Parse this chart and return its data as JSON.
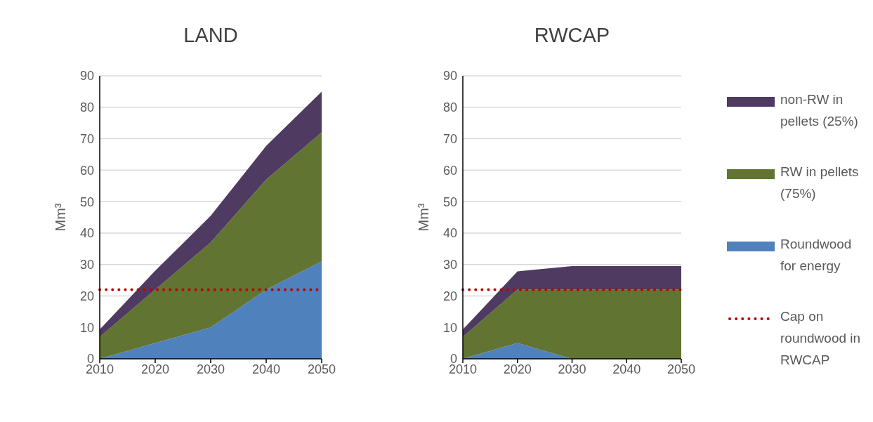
{
  "chart_data": [
    {
      "type": "area",
      "title": "LAND",
      "ylabel": "Mm³",
      "x": [
        2010,
        2020,
        2030,
        2040,
        2050
      ],
      "stacked": true,
      "series": [
        {
          "color": "#4f81bd",
          "values": [
            0,
            5,
            10,
            22,
            31
          ]
        },
        {
          "color": "#627431",
          "values": [
            7,
            17,
            27,
            35,
            41
          ]
        },
        {
          "color": "#4f3b62",
          "values": [
            2.3,
            6,
            8.5,
            10.7,
            13
          ]
        }
      ],
      "xlim": [
        2010,
        2050
      ],
      "xticks": [
        2010,
        2020,
        2030,
        2040,
        2050
      ],
      "ylim": [
        0,
        90
      ],
      "yticks": [
        0,
        10,
        20,
        30,
        40,
        50,
        60,
        70,
        80,
        90
      ],
      "grid": "y",
      "legend": false,
      "ref_lines": [
        {
          "axis": "y",
          "value": 22,
          "color": "#c00000",
          "line_style": "dotted"
        }
      ]
    },
    {
      "type": "area",
      "title": "RWCAP",
      "ylabel": "Mm³",
      "x": [
        2010,
        2020,
        2030,
        2040,
        2050
      ],
      "stacked": true,
      "series": [
        {
          "name": "Roundwood for energy",
          "color": "#4f81bd",
          "values": [
            0,
            5,
            0,
            0,
            0
          ]
        },
        {
          "name": "RW in pellets (75%)",
          "color": "#627431",
          "values": [
            7,
            17,
            22,
            22,
            22
          ]
        },
        {
          "name": "non-RW in pellets (25%)",
          "color": "#4f3b62",
          "values": [
            2.3,
            5.8,
            7.5,
            7.5,
            7.5
          ]
        }
      ],
      "xlim": [
        2010,
        2050
      ],
      "xticks": [
        2010,
        2020,
        2030,
        2040,
        2050
      ],
      "ylim": [
        0,
        90
      ],
      "yticks": [
        0,
        10,
        20,
        30,
        40,
        50,
        60,
        70,
        80,
        90
      ],
      "grid": "y",
      "legend": "right",
      "ref_lines": [
        {
          "axis": "y",
          "value": 22,
          "label": "Cap on roundwood in RWCAP",
          "color": "#c00000",
          "line_style": "dotted"
        }
      ]
    }
  ]
}
